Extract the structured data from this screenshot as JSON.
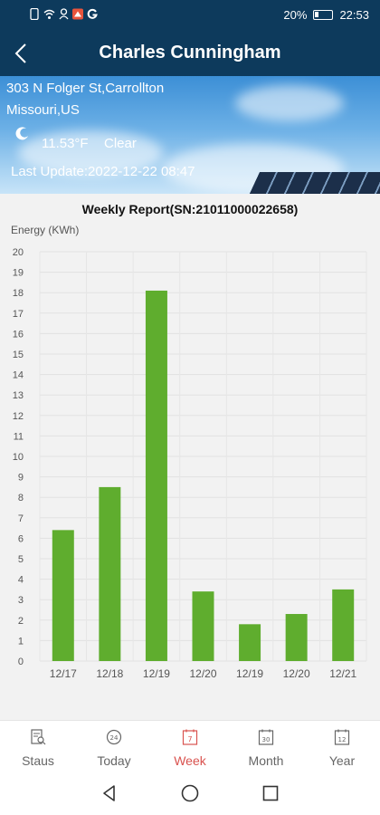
{
  "status_bar": {
    "battery_percent": "20%",
    "time": "22:53"
  },
  "header": {
    "title": "Charles Cunningham"
  },
  "banner": {
    "address_line1": "303 N Folger St,Carrollton",
    "address_line2": "Missouri,US",
    "temperature": "11.53°F",
    "condition": "Clear",
    "last_update": "Last Update:2022-12-22 08:47"
  },
  "chart_data": {
    "type": "bar",
    "title": "Weekly Report(SN:21011000022658)",
    "ylabel": "Energy (KWh)",
    "xlabel": "",
    "categories": [
      "12/17",
      "12/18",
      "12/19",
      "12/20",
      "12/19",
      "12/20",
      "12/21"
    ],
    "values": [
      6.4,
      8.5,
      18.1,
      3.4,
      1.8,
      2.3,
      3.5
    ],
    "ylim": [
      0,
      20
    ],
    "yticks": [
      "0",
      "1",
      "2",
      "3",
      "4",
      "5",
      "6",
      "7",
      "8",
      "9",
      "10",
      "11",
      "12",
      "13",
      "14",
      "15",
      "16",
      "17",
      "18",
      "19",
      "20"
    ],
    "grid": true,
    "bar_color": "#5fad2e"
  },
  "tabs": [
    {
      "label": "Staus",
      "icon": "document-search-icon",
      "active": false
    },
    {
      "label": "Today",
      "icon": "clock-24-icon",
      "active": false
    },
    {
      "label": "Week",
      "icon": "calendar-7-icon",
      "active": true
    },
    {
      "label": "Month",
      "icon": "calendar-30-icon",
      "active": false
    },
    {
      "label": "Year",
      "icon": "calendar-12-icon",
      "active": false
    }
  ],
  "theme": {
    "header_bg": "#0d3a5c",
    "active_tab": "#d9534f"
  }
}
